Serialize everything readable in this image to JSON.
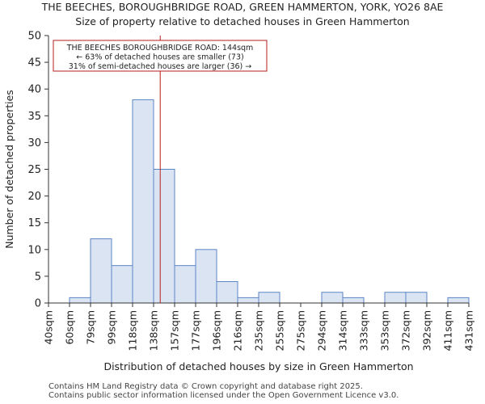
{
  "chart_data": {
    "type": "bar",
    "title": "THE BEECHES, BOROUGHBRIDGE ROAD, GREEN HAMMERTON, YORK, YO26 8AE",
    "subtitle": "Size of property relative to detached houses in Green Hammerton",
    "xlabel": "Distribution of detached houses by size in Green Hammerton",
    "ylabel": "Number of detached properties",
    "bin_edges": [
      40,
      60,
      79,
      99,
      118,
      138,
      157,
      177,
      196,
      216,
      235,
      255,
      275,
      294,
      314,
      333,
      353,
      372,
      392,
      411,
      431
    ],
    "x_tick_labels": [
      "40sqm",
      "60sqm",
      "79sqm",
      "99sqm",
      "118sqm",
      "138sqm",
      "157sqm",
      "177sqm",
      "196sqm",
      "216sqm",
      "235sqm",
      "255sqm",
      "275sqm",
      "294sqm",
      "314sqm",
      "333sqm",
      "353sqm",
      "372sqm",
      "392sqm",
      "411sqm",
      "431sqm"
    ],
    "values": [
      0,
      1,
      12,
      7,
      38,
      25,
      7,
      10,
      4,
      1,
      2,
      0,
      0,
      2,
      1,
      0,
      2,
      2,
      0,
      1
    ],
    "ylim": [
      0,
      50
    ],
    "y_ticks": [
      0,
      5,
      10,
      15,
      20,
      25,
      30,
      35,
      40,
      45,
      50
    ],
    "grid": false,
    "bar_fill": "#dbe4f3",
    "bar_edge": "#5b86c5",
    "marker": {
      "x": 144,
      "color": "#b71c1c"
    },
    "annotation": {
      "lines": [
        "THE BEECHES BOROUGHBRIDGE ROAD: 144sqm",
        "← 63% of detached houses are smaller (73)",
        "31% of semi-detached houses are larger (36) →"
      ],
      "border_color": "#b71c1c"
    }
  },
  "footer": {
    "line1": "Contains HM Land Registry data © Crown copyright and database right 2025.",
    "line2": "Contains public sector information licensed under the Open Government Licence v3.0."
  }
}
